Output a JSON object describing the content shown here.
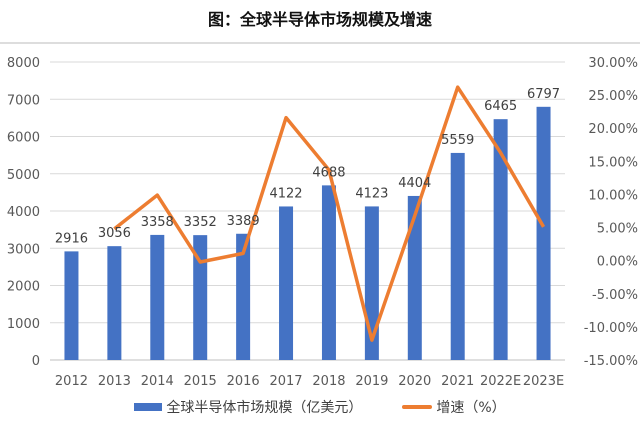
{
  "title": "图：全球半导体市场规模及增速",
  "chart_data": {
    "type": "bar+line",
    "categories": [
      "2012",
      "2013",
      "2014",
      "2015",
      "2016",
      "2017",
      "2018",
      "2019",
      "2020",
      "2021",
      "2022E",
      "2023E"
    ],
    "series": [
      {
        "name": "全球半导体市场规模（亿美元）",
        "type": "bar",
        "axis": "left",
        "color": "#4472C4",
        "values": [
          2916,
          3056,
          3358,
          3352,
          3389,
          4122,
          4688,
          4123,
          4404,
          5559,
          6465,
          6797
        ]
      },
      {
        "name": "增速（%）",
        "type": "line",
        "axis": "right",
        "color": "#ED7D31",
        "values": [
          null,
          4.8,
          9.9,
          -0.2,
          1.1,
          21.6,
          13.7,
          -12.0,
          6.8,
          26.2,
          16.3,
          5.1
        ]
      }
    ],
    "left_axis": {
      "ylim": [
        0,
        8000
      ],
      "ticks": [
        "0",
        "1000",
        "2000",
        "3000",
        "4000",
        "5000",
        "6000",
        "7000",
        "8000"
      ]
    },
    "right_axis": {
      "ylim": [
        -15,
        30
      ],
      "ticks": [
        "-15.00%",
        "-10.00%",
        "-5.00%",
        "0.00%",
        "5.00%",
        "10.00%",
        "15.00%",
        "20.00%",
        "25.00%",
        "30.00%"
      ]
    },
    "grid": true,
    "legend": "bottom"
  }
}
